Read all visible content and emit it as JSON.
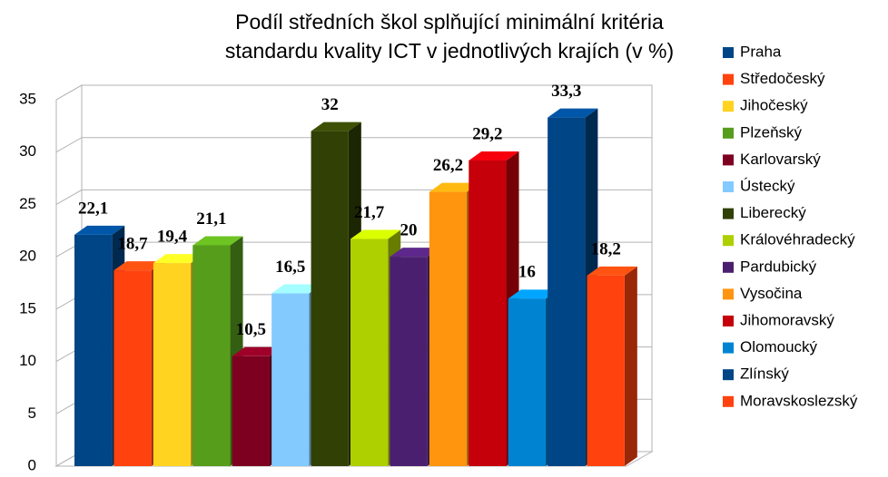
{
  "chart_data": {
    "type": "bar",
    "title": [
      "Podíl středních škol splňující minimální kritéria",
      "standardu kvality ICT v jednotlivých krajích (v %)"
    ],
    "ylim": [
      0,
      35
    ],
    "yticks": [
      0,
      5,
      10,
      15,
      20,
      25,
      30,
      35
    ],
    "grid": true,
    "legend": "right",
    "series": [
      {
        "name": "Praha",
        "color": "#004586",
        "values": [
          22.1
        ],
        "value_labels": [
          "22,1"
        ]
      },
      {
        "name": "Středočeský",
        "color": "#ff420e",
        "values": [
          18.7
        ],
        "value_labels": [
          "18,7"
        ]
      },
      {
        "name": "Jihočeský",
        "color": "#ffd320",
        "values": [
          19.4
        ],
        "value_labels": [
          "19,4"
        ]
      },
      {
        "name": "Plzeňský",
        "color": "#579d1c",
        "values": [
          21.1
        ],
        "value_labels": [
          "21,1"
        ]
      },
      {
        "name": "Karlovarský",
        "color": "#7e0021",
        "values": [
          10.5
        ],
        "value_labels": [
          "10,5"
        ]
      },
      {
        "name": "Ústecký",
        "color": "#83caff",
        "values": [
          16.5
        ],
        "value_labels": [
          "16,5"
        ]
      },
      {
        "name": "Liberecký",
        "color": "#314004",
        "values": [
          32
        ]
      },
      {
        "name": "Královéhradecký",
        "color": "#aecf00",
        "values": [
          21.7
        ],
        "value_labels": [
          "21,7"
        ]
      },
      {
        "name": "Pardubický",
        "color": "#4b1f6f",
        "values": [
          20
        ]
      },
      {
        "name": "Vysočina",
        "color": "#ff950e",
        "values": [
          26.2
        ],
        "value_labels": [
          "26,2"
        ]
      },
      {
        "name": "Jihomoravský",
        "color": "#c5000b",
        "values": [
          29.2
        ],
        "value_labels": [
          "29,2"
        ]
      },
      {
        "name": "Olomoucký",
        "color": "#0084d1",
        "values": [
          16
        ]
      },
      {
        "name": "Zlínský",
        "color": "#004586",
        "values": [
          33.3
        ],
        "value_labels": [
          "33,3"
        ]
      },
      {
        "name": "Moravskoslezský",
        "color": "#ff420e",
        "values": [
          18.2
        ],
        "value_labels": [
          "18,2"
        ]
      }
    ]
  }
}
